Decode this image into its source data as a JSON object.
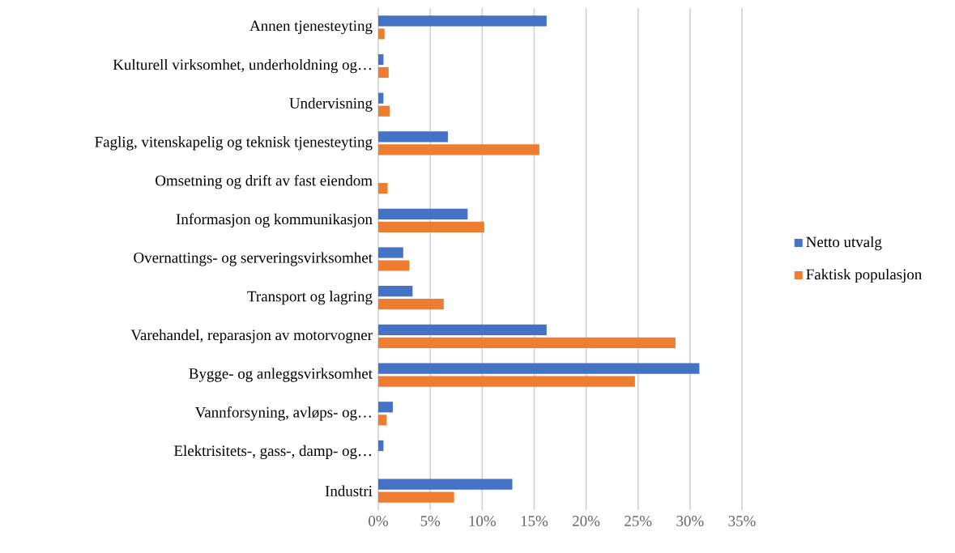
{
  "chart_data": {
    "type": "bar",
    "orientation": "horizontal",
    "categories": [
      "Annen tjenesteyting",
      "Kulturell virksomhet, underholdning og…",
      "Undervisning",
      "Faglig, vitenskapelig og teknisk tjenesteyting",
      "Omsetning og drift av fast eiendom",
      "Informasjon og kommunikasjon",
      "Overnattings- og serveringsvirksomhet",
      "Transport og lagring",
      "Varehandel, reparasjon av motorvogner",
      "Bygge- og anleggsvirksomhet",
      "Vannforsyning, avløps- og…",
      "Elektrisitets-, gass-, damp- og…",
      "Industri"
    ],
    "series": [
      {
        "name": "Netto utvalg",
        "color": "#4472c4",
        "values": [
          16.2,
          0.5,
          0.5,
          6.7,
          null,
          8.6,
          2.4,
          3.3,
          16.2,
          30.9,
          1.4,
          0.5,
          12.9
        ]
      },
      {
        "name": "Faktisk populasjon",
        "color": "#ed7d31",
        "values": [
          0.6,
          1.0,
          1.1,
          15.5,
          0.9,
          10.2,
          3.0,
          6.3,
          28.6,
          24.7,
          0.8,
          null,
          7.3
        ]
      }
    ],
    "xlim": [
      0,
      35
    ],
    "xticks": [
      {
        "value": 0,
        "label": "0%"
      },
      {
        "value": 5,
        "label": "5%"
      },
      {
        "value": 10,
        "label": "10%"
      },
      {
        "value": 15,
        "label": "15%"
      },
      {
        "value": 20,
        "label": "20%"
      },
      {
        "value": 25,
        "label": "25%"
      },
      {
        "value": 30,
        "label": "30%"
      },
      {
        "value": 35,
        "label": "35%"
      }
    ],
    "grid": "x",
    "legend": "right"
  }
}
